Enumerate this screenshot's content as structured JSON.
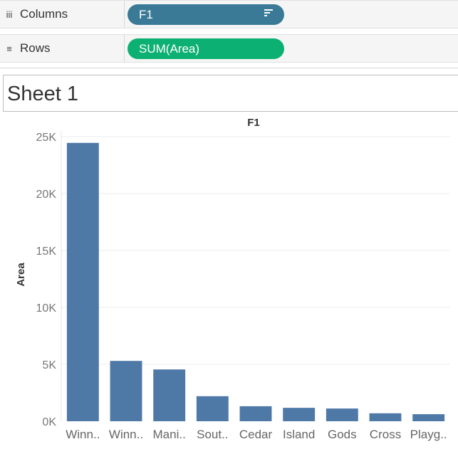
{
  "shelves": {
    "columns": {
      "label": "Columns",
      "icon": "columns-icon",
      "pill": "F1",
      "pill_color": "#3a7a96"
    },
    "rows": {
      "label": "Rows",
      "icon": "rows-icon",
      "pill": "SUM(Area)",
      "pill_color": "#0db073"
    }
  },
  "sheet": {
    "title": "Sheet 1"
  },
  "chart_data": {
    "type": "bar",
    "header": "F1",
    "ylabel": "Area",
    "categories": [
      "Winn..",
      "Winn..",
      "Mani..",
      "Sout..",
      "Cedar",
      "Island",
      "Gods",
      "Cross",
      "Playg.."
    ],
    "values": [
      24450,
      5300,
      4550,
      2200,
      1320,
      1180,
      1120,
      700,
      620
    ],
    "ylim": [
      0,
      25000
    ],
    "yticks": [
      0,
      5000,
      10000,
      15000,
      20000,
      25000
    ],
    "ytick_labels": [
      "0K",
      "5K",
      "10K",
      "15K",
      "20K",
      "25K"
    ],
    "bar_color": "#4e79a7",
    "grid": true
  }
}
